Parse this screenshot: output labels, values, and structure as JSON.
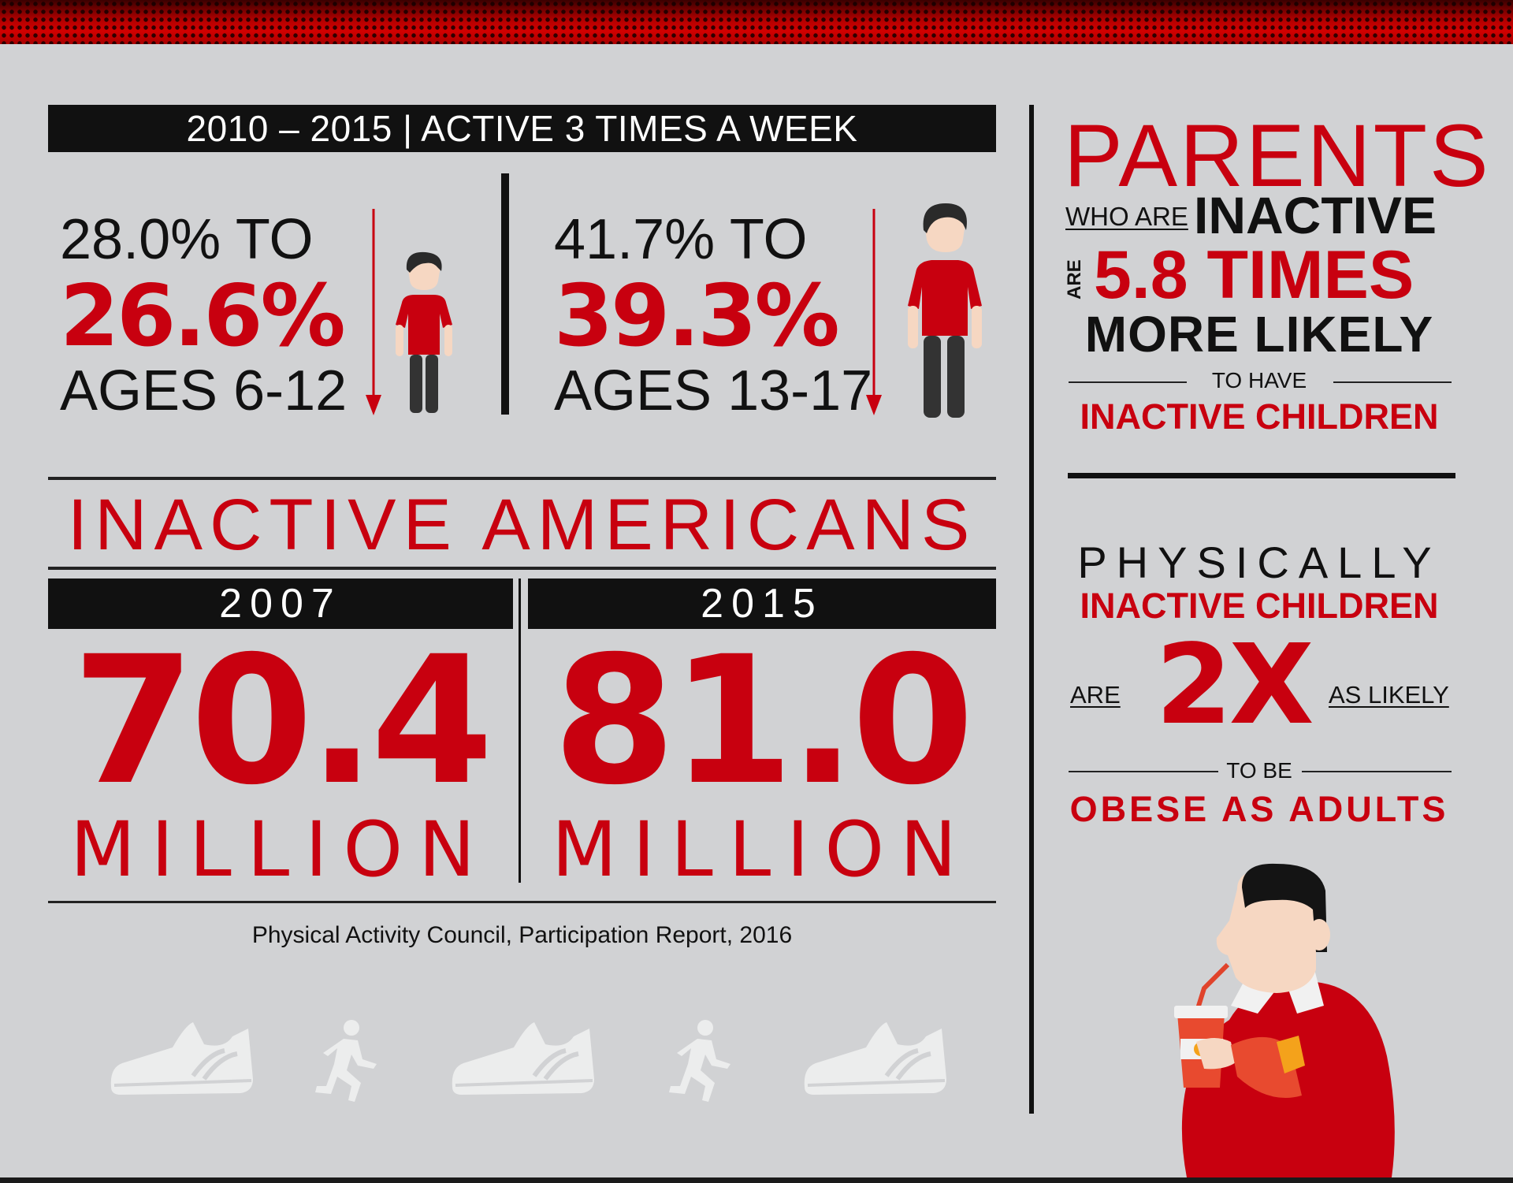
{
  "header": {
    "banner": "2010 – 2015 | ACTIVE 3 TIMES A WEEK"
  },
  "kids": {
    "from": "28.0% TO",
    "to": "26.6%",
    "ages": "AGES 6-12"
  },
  "teens": {
    "from": "41.7% TO",
    "to": "39.3%",
    "ages": "AGES 13-17"
  },
  "inactive_americans": {
    "title": "INACTIVE AMERICANS",
    "col1": {
      "year": "2007",
      "value": "70.4",
      "unit": "MILLION"
    },
    "col2": {
      "year": "2015",
      "value": "81.0",
      "unit": "MILLION"
    },
    "source": "Physical Activity Council, Participation Report, 2016"
  },
  "parents": {
    "title": "PARENTS",
    "who_are": "WHO ARE",
    "inactive": "INACTIVE",
    "are": "ARE",
    "times": "5.8 TIMES",
    "more_likely": "MORE LIKELY",
    "to_have": "TO HAVE",
    "children": "INACTIVE CHILDREN"
  },
  "children": {
    "physically": "PHYSICALLY",
    "inactive_children": "INACTIVE CHILDREN",
    "are": "ARE",
    "multiplier": "2X",
    "as_likely": "AS LIKELY",
    "to_be": "TO BE",
    "obese": "OBESE AS ADULTS"
  },
  "colors": {
    "accent": "#c8000f",
    "background": "#d1d2d4",
    "dark": "#111111"
  }
}
